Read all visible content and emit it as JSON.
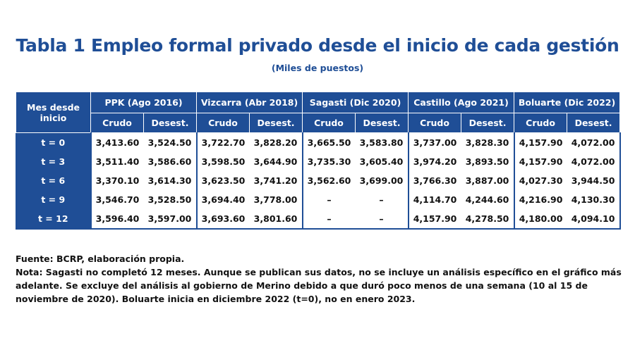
{
  "title": "Tabla 1 Empleo formal privado desde el inicio de cada gestión",
  "subtitle": "(Miles de puestos)",
  "table": {
    "row_header": "Mes desde inicio",
    "groups": [
      "PPK (Ago 2016)",
      "Vizcarra (Abr 2018)",
      "Sagasti (Dic 2020)",
      "Castillo (Ago 2021)",
      "Boluarte (Dic 2022)"
    ],
    "sub_headers": [
      "Crudo",
      "Desest."
    ],
    "rows": [
      {
        "label": "t = 0",
        "values": [
          "3,413.60",
          "3,524.50",
          "3,722.70",
          "3,828.20",
          "3,665.50",
          "3,583.80",
          "3,737.00",
          "3,828.30",
          "4,157.90",
          "4,072.00"
        ]
      },
      {
        "label": "t = 3",
        "values": [
          "3,511.40",
          "3,586.60",
          "3,598.50",
          "3,644.90",
          "3,735.30",
          "3,605.40",
          "3,974.20",
          "3,893.50",
          "4,157.90",
          "4,072.00"
        ]
      },
      {
        "label": "t = 6",
        "values": [
          "3,370.10",
          "3,614.30",
          "3,623.50",
          "3,741.20",
          "3,562.60",
          "3,699.00",
          "3,766.30",
          "3,887.00",
          "4,027.30",
          "3,944.50"
        ]
      },
      {
        "label": "t = 9",
        "values": [
          "3,546.70",
          "3,528.50",
          "3,694.40",
          "3,778.00",
          "–",
          "–",
          "4,114.70",
          "4,244.60",
          "4,216.90",
          "4,130.30"
        ]
      },
      {
        "label": "t = 12",
        "values": [
          "3,596.40",
          "3,597.00",
          "3,693.60",
          "3,801.60",
          "–",
          "–",
          "4,157.90",
          "4,278.50",
          "4,180.00",
          "4,094.10"
        ]
      }
    ]
  },
  "notes": {
    "source": "Fuente: BCRP, elaboración propia.",
    "note": "Nota: Sagasti no completó 12 meses. Aunque se publican sus datos, no se incluye un análisis específico en el gráfico más adelante. Se excluye del análisis al gobierno de Merino debido a que duró poco menos de una semana (10 al 15 de noviembre de 2020). Boluarte inicia en diciembre 2022 (t=0), no en enero 2023."
  },
  "colors": {
    "header_blue": "#1f4e96",
    "title_blue": "#1f4e96"
  }
}
